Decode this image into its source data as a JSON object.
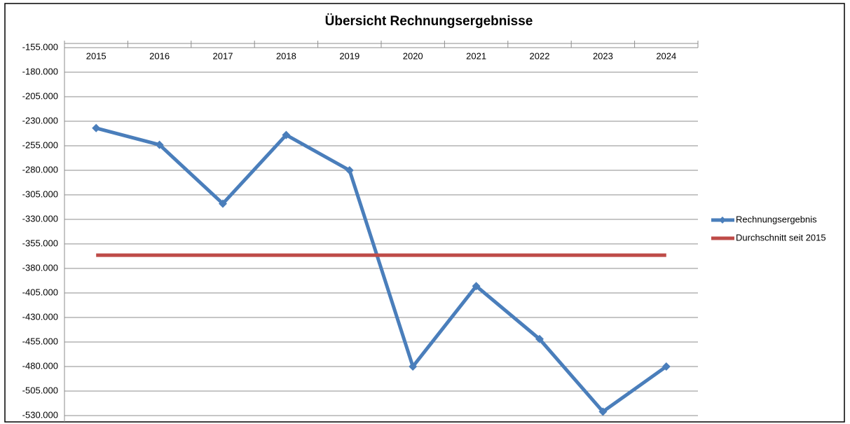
{
  "chart_data": {
    "type": "line",
    "title": "Übersicht Rechnungsergebnisse",
    "categories": [
      "2015",
      "2016",
      "2017",
      "2018",
      "2019",
      "2020",
      "2021",
      "2022",
      "2023",
      "2024"
    ],
    "series": [
      {
        "name": "Rechnungsergebnis",
        "color": "#4a7ebb",
        "marker": "diamond",
        "values": [
          -237000,
          -254000,
          -314000,
          -244000,
          -280000,
          -480000,
          -398000,
          -452000,
          -526000,
          -480000
        ]
      },
      {
        "name": "Durchschnitt seit 2015",
        "color": "#be4b48",
        "values": [
          -366500,
          -366500,
          -366500,
          -366500,
          -366500,
          -366500,
          -366500,
          -366500,
          -366500,
          -366500
        ]
      }
    ],
    "ylim": [
      -530000,
      -155000
    ],
    "yticks": [
      {
        "value": -155000,
        "label": "-155.000"
      },
      {
        "value": -180000,
        "label": "-180.000"
      },
      {
        "value": -205000,
        "label": "-205.000"
      },
      {
        "value": -230000,
        "label": "-230.000"
      },
      {
        "value": -255000,
        "label": "-255.000"
      },
      {
        "value": -280000,
        "label": "-280.000"
      },
      {
        "value": -305000,
        "label": "-305.000"
      },
      {
        "value": -330000,
        "label": "-330.000"
      },
      {
        "value": -355000,
        "label": "-355.000"
      },
      {
        "value": -380000,
        "label": "-380.000"
      },
      {
        "value": -405000,
        "label": "-405.000"
      },
      {
        "value": -430000,
        "label": "-430.000"
      },
      {
        "value": -455000,
        "label": "-455.000"
      },
      {
        "value": -480000,
        "label": "-480.000"
      },
      {
        "value": -505000,
        "label": "-505.000"
      },
      {
        "value": -530000,
        "label": "-530.000"
      }
    ],
    "grid": true,
    "legend": "right"
  }
}
